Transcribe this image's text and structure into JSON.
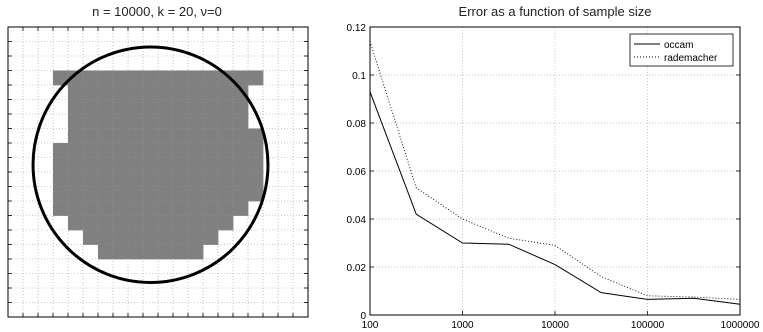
{
  "chart_data": [
    {
      "type": "heatmap",
      "title": "n = 10000, k = 20, ν=0",
      "grid": true,
      "grid_cells": 20,
      "filled_cells": [
        [
          6,
          5
        ],
        [
          7,
          5
        ],
        [
          8,
          5
        ],
        [
          9,
          5
        ],
        [
          10,
          5
        ],
        [
          11,
          5
        ],
        [
          12,
          5
        ],
        [
          13,
          5
        ],
        [
          14,
          5
        ],
        [
          15,
          5
        ],
        [
          4,
          4
        ],
        [
          5,
          4
        ],
        [
          6,
          4
        ],
        [
          7,
          4
        ],
        [
          8,
          4
        ],
        [
          9,
          4
        ],
        [
          10,
          4
        ],
        [
          11,
          4
        ],
        [
          12,
          4
        ],
        [
          13,
          4
        ],
        [
          14,
          4
        ],
        [
          15,
          4
        ],
        [
          3,
          3
        ],
        [
          4,
          3
        ],
        [
          5,
          3
        ],
        [
          6,
          3
        ],
        [
          7,
          3
        ],
        [
          8,
          3
        ],
        [
          9,
          3
        ],
        [
          10,
          3
        ],
        [
          11,
          3
        ],
        [
          12,
          3
        ],
        [
          13,
          3
        ],
        [
          14,
          3
        ],
        [
          15,
          3
        ],
        [
          16,
          3
        ],
        [
          4,
          6
        ],
        [
          5,
          6
        ],
        [
          6,
          6
        ],
        [
          7,
          6
        ],
        [
          8,
          6
        ],
        [
          9,
          6
        ],
        [
          10,
          6
        ],
        [
          11,
          6
        ],
        [
          12,
          6
        ],
        [
          13,
          6
        ],
        [
          14,
          6
        ],
        [
          15,
          6
        ],
        [
          4,
          7
        ],
        [
          5,
          7
        ],
        [
          6,
          7
        ],
        [
          7,
          7
        ],
        [
          8,
          7
        ],
        [
          9,
          7
        ],
        [
          10,
          7
        ],
        [
          11,
          7
        ],
        [
          12,
          7
        ],
        [
          13,
          7
        ],
        [
          14,
          7
        ],
        [
          15,
          7
        ],
        [
          4,
          8
        ],
        [
          5,
          8
        ],
        [
          6,
          8
        ],
        [
          7,
          8
        ],
        [
          8,
          8
        ],
        [
          9,
          8
        ],
        [
          10,
          8
        ],
        [
          11,
          8
        ],
        [
          12,
          8
        ],
        [
          13,
          8
        ],
        [
          14,
          8
        ],
        [
          15,
          8
        ],
        [
          4,
          9
        ],
        [
          5,
          9
        ],
        [
          6,
          9
        ],
        [
          7,
          9
        ],
        [
          8,
          9
        ],
        [
          9,
          9
        ],
        [
          10,
          9
        ],
        [
          11,
          9
        ],
        [
          12,
          9
        ],
        [
          13,
          9
        ],
        [
          14,
          9
        ],
        [
          15,
          9
        ],
        [
          4,
          10
        ],
        [
          5,
          10
        ],
        [
          6,
          10
        ],
        [
          7,
          10
        ],
        [
          8,
          10
        ],
        [
          9,
          10
        ],
        [
          10,
          10
        ],
        [
          11,
          10
        ],
        [
          12,
          10
        ],
        [
          13,
          10
        ],
        [
          14,
          10
        ],
        [
          15,
          10
        ],
        [
          4,
          11
        ],
        [
          5,
          11
        ],
        [
          6,
          11
        ],
        [
          7,
          11
        ],
        [
          8,
          11
        ],
        [
          9,
          11
        ],
        [
          10,
          11
        ],
        [
          11,
          11
        ],
        [
          12,
          11
        ],
        [
          13,
          11
        ],
        [
          14,
          11
        ],
        [
          15,
          11
        ],
        [
          4,
          12
        ],
        [
          5,
          12
        ],
        [
          6,
          12
        ],
        [
          7,
          12
        ],
        [
          8,
          12
        ],
        [
          9,
          12
        ],
        [
          10,
          12
        ],
        [
          11,
          12
        ],
        [
          12,
          12
        ],
        [
          13,
          12
        ],
        [
          14,
          12
        ],
        [
          5,
          13
        ],
        [
          6,
          13
        ],
        [
          7,
          13
        ],
        [
          8,
          13
        ],
        [
          9,
          13
        ],
        [
          10,
          13
        ],
        [
          11,
          13
        ],
        [
          12,
          13
        ],
        [
          13,
          13
        ],
        [
          14,
          13
        ],
        [
          6,
          14
        ],
        [
          7,
          14
        ],
        [
          8,
          14
        ],
        [
          9,
          14
        ],
        [
          10,
          14
        ],
        [
          11,
          14
        ],
        [
          12,
          14
        ],
        [
          13,
          14
        ],
        [
          7,
          15
        ],
        [
          8,
          15
        ],
        [
          9,
          15
        ],
        [
          10,
          15
        ],
        [
          11,
          15
        ],
        [
          12,
          15
        ],
        [
          3,
          12
        ],
        [
          4,
          13
        ],
        [
          5,
          14
        ],
        [
          6,
          15
        ],
        [
          12,
          15
        ],
        [
          13,
          14
        ],
        [
          14,
          13
        ],
        [
          7,
          4
        ],
        [
          8,
          4
        ],
        [
          9,
          4
        ],
        [
          10,
          4
        ],
        [
          5,
          5
        ],
        [
          14,
          5
        ],
        [
          15,
          6
        ],
        [
          16,
          7
        ],
        [
          16,
          8
        ],
        [
          16,
          9
        ],
        [
          16,
          10
        ],
        [
          16,
          11
        ],
        [
          15,
          12
        ],
        [
          3,
          8
        ],
        [
          3,
          9
        ],
        [
          3,
          10
        ],
        [
          3,
          11
        ],
        [
          4,
          5
        ],
        [
          7,
          3
        ],
        [
          8,
          3
        ],
        [
          10,
          3
        ],
        [
          11,
          3
        ]
      ],
      "cell_color": "#808080",
      "circle": {
        "cx": 9.5,
        "cy": 9.5,
        "r": 5.8
      }
    },
    {
      "type": "line",
      "title": "Error as a function of sample size",
      "xlabel": "",
      "ylabel": "",
      "xscale": "log",
      "xlim": [
        100,
        1000000
      ],
      "ylim": [
        0,
        0.12
      ],
      "x_ticks": [
        "100",
        "1000",
        "10000",
        "100000",
        "1000000"
      ],
      "y_ticks": [
        "0",
        "0.02",
        "0.04",
        "0.06",
        "0.08",
        "0.1",
        "0.12"
      ],
      "grid": true,
      "legend_position": "top-right",
      "series": [
        {
          "name": "occam",
          "style": "solid",
          "x": [
            100,
            316,
            1000,
            3162,
            10000,
            31623,
            100000,
            316228,
            1000000
          ],
          "values": [
            0.093,
            0.042,
            0.03,
            0.0295,
            0.021,
            0.0093,
            0.0065,
            0.007,
            0.0045
          ]
        },
        {
          "name": "rademacher",
          "style": "dotted",
          "x": [
            100,
            316,
            1000,
            3162,
            10000,
            31623,
            100000,
            316228,
            1000000
          ],
          "values": [
            0.114,
            0.053,
            0.04,
            0.032,
            0.029,
            0.016,
            0.008,
            0.0075,
            0.0065
          ]
        }
      ]
    }
  ]
}
